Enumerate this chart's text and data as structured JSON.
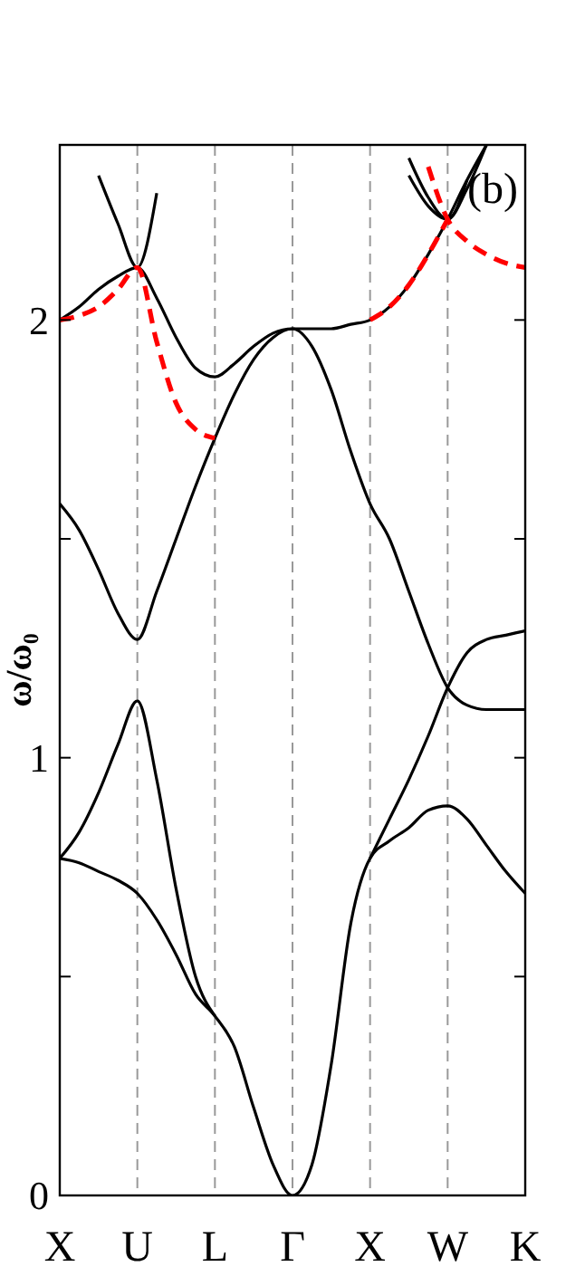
{
  "chart_data": {
    "type": "line",
    "ylabel": "ω/ω₀",
    "annotations": [
      "(b)"
    ],
    "categories": [
      "X",
      null,
      null,
      null,
      "U",
      null,
      null,
      null,
      "L",
      null,
      null,
      null,
      "Γ",
      null,
      null,
      null,
      "X",
      null,
      null,
      null,
      "W",
      null,
      null,
      null,
      "K"
    ],
    "ylim": [
      0,
      2.4
    ],
    "yticks": [
      0,
      {
        "value": 0.5,
        "label": null
      },
      1,
      {
        "value": 1.5,
        "label": null
      },
      2
    ],
    "grid": "x",
    "series": [
      {
        "color": "#000000",
        "line_style": "solid",
        "values": [
          0.77,
          0.76,
          0.74,
          0.72,
          0.69,
          0.63,
          0.55,
          0.46,
          0.41,
          0.34,
          0.2,
          0.07,
          0,
          0.07,
          0.3,
          0.62,
          0.77,
          0.81,
          0.84,
          0.88,
          0.89,
          0.86,
          0.8,
          0.74,
          0.69
        ]
      },
      {
        "color": "#000000",
        "line_style": "solid",
        "values": [
          0.77,
          0.83,
          0.92,
          1.03,
          1.13,
          0.95,
          0.7,
          0.5,
          0.41,
          null,
          null,
          null,
          null,
          null,
          null,
          null,
          null,
          null,
          null,
          null,
          null,
          null,
          null,
          null,
          null
        ]
      },
      {
        "color": "#000000",
        "line_style": "solid",
        "values": [
          null,
          null,
          null,
          null,
          null,
          null,
          null,
          null,
          null,
          null,
          null,
          null,
          null,
          null,
          null,
          null,
          0.77,
          0.86,
          0.95,
          1.05,
          1.16,
          1.24,
          1.27,
          1.28,
          1.29
        ]
      },
      {
        "color": "#000000",
        "line_style": "solid",
        "values": [
          1.58,
          1.52,
          1.43,
          1.33,
          1.27,
          1.38,
          1.5,
          1.62,
          1.73,
          1.83,
          1.91,
          1.96,
          1.98,
          1.94,
          1.84,
          1.7,
          1.58,
          1.5,
          1.38,
          1.26,
          1.16,
          1.12,
          1.11,
          1.11,
          1.11
        ]
      },
      {
        "color": "#000000",
        "line_style": "solid",
        "values": [
          2.0,
          2.03,
          2.07,
          2.1,
          2.12,
          2.05,
          1.96,
          1.89,
          1.87,
          1.9,
          1.94,
          1.97,
          1.98,
          1.98,
          1.98,
          1.99,
          2.0,
          2.03,
          2.08,
          2.15,
          2.23,
          2.32,
          2.4,
          null,
          null
        ]
      },
      {
        "color": "#000000",
        "line_style": "solid",
        "values": [
          null,
          null,
          2.33,
          2.22,
          2.12,
          2.29,
          null,
          null,
          null,
          null,
          null,
          null,
          null,
          null,
          null,
          null,
          null,
          null,
          null,
          null,
          null,
          null,
          null,
          null,
          null
        ]
      },
      {
        "color": "#000000",
        "line_style": "solid",
        "values": [
          null,
          null,
          null,
          null,
          null,
          null,
          null,
          null,
          null,
          null,
          null,
          null,
          null,
          null,
          null,
          null,
          null,
          null,
          2.33,
          2.26,
          2.23,
          2.32,
          null,
          null,
          null
        ]
      },
      {
        "color": "#000000",
        "line_style": "solid",
        "values": [
          null,
          null,
          null,
          null,
          null,
          null,
          null,
          null,
          null,
          null,
          null,
          null,
          null,
          null,
          null,
          null,
          null,
          null,
          2.37,
          2.28,
          2.23,
          2.3,
          2.4,
          null,
          null
        ]
      },
      {
        "color": "#ff0000",
        "line_style": "dashed",
        "values": [
          2.0,
          2.01,
          2.03,
          2.07,
          2.12,
          1.95,
          1.81,
          1.75,
          1.73,
          null,
          null,
          null,
          null,
          null,
          null,
          null,
          null,
          null,
          null,
          null,
          null,
          null,
          null,
          null,
          null
        ]
      },
      {
        "color": "#ff0000",
        "line_style": "dashed",
        "values": [
          null,
          null,
          null,
          null,
          null,
          null,
          null,
          null,
          null,
          null,
          null,
          null,
          null,
          null,
          null,
          null,
          2.0,
          2.03,
          2.08,
          2.15,
          2.23,
          null,
          null,
          null,
          null
        ]
      },
      {
        "color": "#ff0000",
        "line_style": "dashed",
        "values": [
          null,
          null,
          null,
          null,
          null,
          null,
          null,
          null,
          null,
          null,
          null,
          null,
          null,
          null,
          null,
          null,
          null,
          null,
          null,
          2.35,
          2.23,
          2.18,
          2.15,
          2.13,
          2.12
        ]
      }
    ]
  }
}
